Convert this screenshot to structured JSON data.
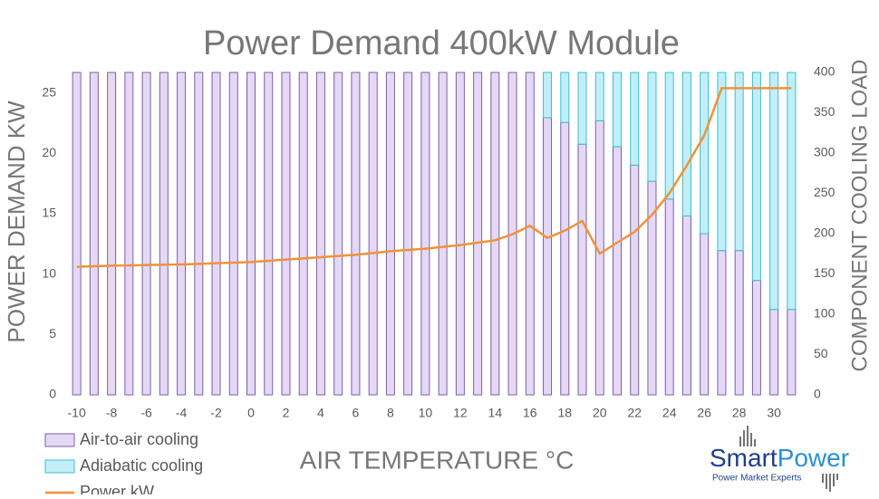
{
  "chart_data": {
    "type": "bar",
    "title": "Power Demand 400kW Module",
    "x_label": "AIR TEMPERATURE °C",
    "y_label": "POWER DEMAND  KW",
    "y2_label": "COMPONENT COOLING LOAD",
    "categories": [
      -10,
      null,
      -8,
      null,
      -6,
      null,
      -4,
      null,
      -2,
      null,
      0,
      null,
      2,
      null,
      4,
      null,
      6,
      null,
      8,
      null,
      10,
      null,
      12,
      null,
      14,
      null,
      16,
      null,
      18,
      null,
      20,
      null,
      22,
      null,
      24,
      null,
      26,
      null,
      28,
      null,
      30,
      null
    ],
    "ylim": [
      0,
      26.7
    ],
    "yticks": [
      0,
      5,
      10,
      15,
      20,
      25
    ],
    "y2lim": [
      0,
      400
    ],
    "y2ticks": [
      0,
      50,
      100,
      150,
      200,
      250,
      300,
      350,
      400
    ],
    "series": [
      {
        "name": "Air-to-air cooling",
        "color": "#e4d9f4",
        "stroke": "#7d5fa8",
        "axis": "y2",
        "stacked": true,
        "values": [
          400,
          400,
          400,
          400,
          400,
          400,
          400,
          400,
          400,
          400,
          400,
          400,
          400,
          400,
          400,
          400,
          400,
          400,
          400,
          400,
          400,
          400,
          400,
          400,
          400,
          400,
          400,
          344,
          338,
          311,
          340,
          308,
          285,
          265,
          243,
          222,
          200,
          179,
          179,
          142,
          106,
          106
        ]
      },
      {
        "name": "Adiabatic cooling",
        "color": "#c2eff7",
        "stroke": "#3dbdd3",
        "axis": "y2",
        "stacked": true,
        "values": [
          0,
          0,
          0,
          0,
          0,
          0,
          0,
          0,
          0,
          0,
          0,
          0,
          0,
          0,
          0,
          0,
          0,
          0,
          0,
          0,
          0,
          0,
          0,
          0,
          0,
          0,
          0,
          56,
          62,
          89,
          60,
          92,
          115,
          135,
          157,
          178,
          200,
          221,
          221,
          258,
          294,
          294
        ]
      },
      {
        "name": "Power kW",
        "color": "#f0923a",
        "type": "line",
        "values": [
          10.6,
          10.65,
          10.7,
          10.72,
          10.75,
          10.78,
          10.8,
          10.85,
          10.9,
          10.95,
          11.0,
          11.1,
          11.2,
          11.3,
          11.4,
          11.5,
          11.6,
          11.75,
          11.9,
          12.0,
          12.1,
          12.25,
          12.4,
          12.6,
          12.8,
          13.3,
          14.0,
          13.0,
          13.6,
          14.4,
          11.7,
          12.6,
          13.5,
          14.9,
          16.7,
          19.0,
          21.5,
          25.4,
          25.4,
          25.4,
          25.4,
          25.4
        ]
      }
    ],
    "legend": "bottom-left"
  },
  "logo": {
    "brand": [
      "Smart",
      "Power"
    ],
    "tagline": "Power Market Experts"
  }
}
